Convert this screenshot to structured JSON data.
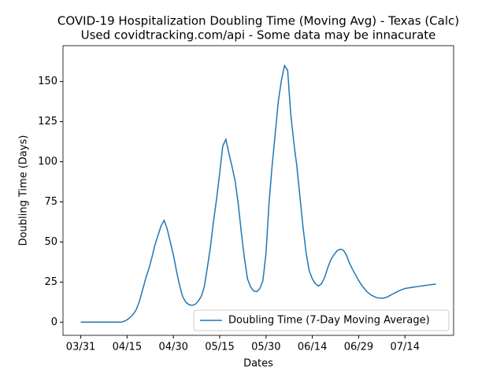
{
  "chart_data": {
    "type": "line",
    "title": "COVID-19 Hospitalization Doubling Time (Moving Avg) - Texas (Calc)",
    "subtitle": "Used covidtracking.com/api - Some data may be innacurate",
    "x_label": "Dates",
    "y_label": "Doubling Time (Days)",
    "categories": [
      "03/31",
      "04/01",
      "04/02",
      "04/03",
      "04/04",
      "04/05",
      "04/06",
      "04/07",
      "04/08",
      "04/09",
      "04/10",
      "04/11",
      "04/12",
      "04/13",
      "04/14",
      "04/15",
      "04/16",
      "04/17",
      "04/18",
      "04/19",
      "04/20",
      "04/21",
      "04/22",
      "04/23",
      "04/24",
      "04/25",
      "04/26",
      "04/27",
      "04/28",
      "04/29",
      "04/30",
      "05/01",
      "05/02",
      "05/03",
      "05/04",
      "05/05",
      "05/06",
      "05/07",
      "05/08",
      "05/09",
      "05/10",
      "05/11",
      "05/12",
      "05/13",
      "05/14",
      "05/15",
      "05/16",
      "05/17",
      "05/18",
      "05/19",
      "05/20",
      "05/21",
      "05/22",
      "05/23",
      "05/24",
      "05/25",
      "05/26",
      "05/27",
      "05/28",
      "05/29",
      "05/30",
      "05/31",
      "06/01",
      "06/02",
      "06/03",
      "06/04",
      "06/05",
      "06/06",
      "06/07",
      "06/08",
      "06/09",
      "06/10",
      "06/11",
      "06/12",
      "06/13",
      "06/14",
      "06/15",
      "06/16",
      "06/17",
      "06/18",
      "06/19",
      "06/20",
      "06/21",
      "06/22",
      "06/23",
      "06/24",
      "06/25",
      "06/26",
      "06/27",
      "06/28",
      "06/29",
      "06/30",
      "07/01",
      "07/02",
      "07/03",
      "07/04",
      "07/05",
      "07/06",
      "07/07",
      "07/08",
      "07/09",
      "07/10",
      "07/11",
      "07/12",
      "07/13",
      "07/14",
      "07/15",
      "07/16",
      "07/17",
      "07/18",
      "07/19",
      "07/20",
      "07/21",
      "07/22",
      "07/23",
      "07/24"
    ],
    "series": [
      {
        "name": "Doubling Time (7-Day Moving Average)",
        "color": "#1f77b4",
        "values": [
          0,
          0,
          0,
          0,
          0,
          0,
          0,
          0,
          0,
          0,
          0,
          0,
          0,
          0,
          0.5,
          1.5,
          3,
          5,
          8,
          13,
          20,
          27,
          33,
          40,
          48,
          54,
          60,
          63.5,
          58,
          50,
          42,
          32,
          23,
          16,
          12.5,
          11,
          10.5,
          11,
          13,
          16,
          22,
          34,
          47,
          63,
          77,
          93,
          110,
          114,
          105,
          97,
          88,
          74,
          56,
          40,
          27,
          22,
          19.5,
          19,
          21,
          26,
          43,
          75,
          98,
          118,
          138,
          151,
          160,
          157,
          130,
          112,
          97,
          78,
          59,
          43,
          32,
          27,
          24,
          22.5,
          24,
          28,
          34,
          39,
          42,
          44.5,
          45.5,
          45,
          42,
          37,
          33,
          29.5,
          26,
          23,
          20.5,
          18.5,
          17,
          16,
          15.2,
          15,
          15,
          15.5,
          16.5,
          17.5,
          18.5,
          19.5,
          20.3,
          21,
          21.3,
          21.6,
          21.9,
          22.2,
          22.5,
          22.8,
          23,
          23.3,
          23.5,
          23.7
        ]
      }
    ],
    "xticks": [
      "03/31",
      "04/15",
      "04/30",
      "05/15",
      "05/30",
      "06/14",
      "06/29",
      "07/14"
    ],
    "ylim": [
      -8.2,
      172.4
    ],
    "yticks": [
      0,
      25,
      50,
      75,
      100,
      125,
      150
    ],
    "grid": false,
    "legend": "lower right"
  }
}
